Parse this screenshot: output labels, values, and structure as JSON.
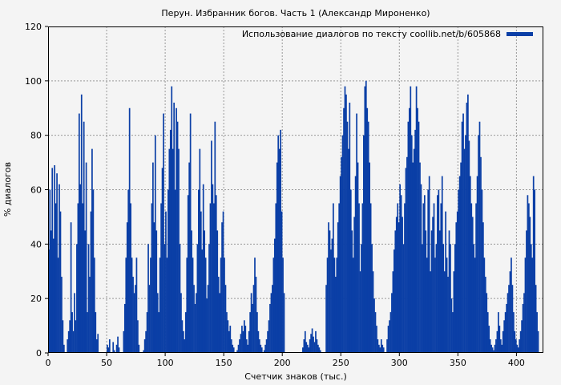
{
  "chart_data": {
    "type": "bar",
    "title": "Перун. Избранник богов. Часть 1 (Александр Мироненко)",
    "xlabel": "Счетчик знаков (тыс.)",
    "ylabel": "% диалогов",
    "xlim": [
      0,
      423
    ],
    "ylim": [
      0,
      120
    ],
    "xticks": [
      "0",
      "50",
      "100",
      "150",
      "200",
      "250",
      "300",
      "350",
      "400"
    ],
    "yticks": [
      "0",
      "20",
      "40",
      "60",
      "80",
      "100",
      "120"
    ],
    "grid": true,
    "legend_position": "top-right",
    "bar_width_thousands": 1,
    "series": [
      {
        "name": "Использование диалогов по тексту coollib.net/b/605868",
        "color": "#0b3fa6",
        "values": [
          38,
          60,
          45,
          68,
          42,
          69,
          55,
          66,
          35,
          62,
          52,
          28,
          12,
          3,
          0,
          0,
          5,
          8,
          12,
          48,
          15,
          8,
          22,
          12,
          40,
          55,
          88,
          62,
          95,
          55,
          85,
          45,
          70,
          15,
          40,
          28,
          52,
          75,
          60,
          35,
          15,
          5,
          7,
          0,
          0,
          0,
          0,
          0,
          0,
          0,
          3,
          2,
          5,
          0,
          0,
          4,
          1,
          0,
          3,
          6,
          2,
          0,
          0,
          0,
          8,
          18,
          35,
          48,
          60,
          90,
          55,
          35,
          28,
          22,
          25,
          35,
          12,
          3,
          0,
          0,
          0,
          1,
          5,
          8,
          15,
          40,
          25,
          35,
          55,
          70,
          48,
          80,
          45,
          22,
          15,
          35,
          55,
          68,
          88,
          40,
          52,
          35,
          60,
          75,
          82,
          98,
          75,
          92,
          60,
          90,
          85,
          75,
          40,
          22,
          12,
          8,
          5,
          15,
          35,
          58,
          70,
          88,
          45,
          35,
          25,
          18,
          22,
          40,
          60,
          75,
          52,
          38,
          62,
          45,
          35,
          20,
          25,
          40,
          55,
          78,
          62,
          55,
          85,
          58,
          45,
          28,
          22,
          35,
          48,
          52,
          35,
          25,
          15,
          12,
          8,
          10,
          5,
          3,
          2,
          0,
          0,
          1,
          3,
          5,
          7,
          10,
          8,
          12,
          10,
          5,
          3,
          8,
          15,
          22,
          18,
          25,
          35,
          28,
          15,
          8,
          5,
          3,
          2,
          0,
          1,
          3,
          5,
          8,
          12,
          18,
          22,
          25,
          35,
          42,
          55,
          70,
          80,
          75,
          82,
          52,
          35,
          22,
          0,
          0,
          0,
          0,
          0,
          0,
          0,
          0,
          0,
          0,
          0,
          0,
          0,
          0,
          0,
          2,
          5,
          8,
          4,
          3,
          2,
          5,
          7,
          9,
          6,
          4,
          8,
          5,
          3,
          2,
          1,
          0,
          0,
          0,
          0,
          25,
          35,
          48,
          45,
          38,
          42,
          55,
          35,
          28,
          35,
          48,
          55,
          65,
          72,
          80,
          90,
          98,
          95,
          85,
          75,
          92,
          60,
          45,
          35,
          50,
          65,
          88,
          70,
          55,
          30,
          40,
          55,
          80,
          98,
          100,
          90,
          85,
          70,
          55,
          40,
          30,
          20,
          15,
          10,
          5,
          3,
          2,
          5,
          3,
          2,
          0,
          0,
          5,
          10,
          12,
          15,
          22,
          30,
          38,
          45,
          50,
          55,
          48,
          62,
          58,
          50,
          40,
          55,
          68,
          72,
          85,
          90,
          98,
          80,
          70,
          75,
          82,
          98,
          90,
          85,
          70,
          62,
          40,
          55,
          58,
          45,
          35,
          60,
          65,
          30,
          45,
          50,
          55,
          35,
          40,
          58,
          60,
          45,
          55,
          65,
          40,
          30,
          52,
          35,
          28,
          45,
          40,
          20,
          15,
          30,
          40,
          48,
          52,
          60,
          65,
          70,
          85,
          88,
          75,
          80,
          92,
          95,
          78,
          65,
          55,
          50,
          40,
          35,
          55,
          65,
          80,
          85,
          72,
          60,
          48,
          35,
          28,
          22,
          15,
          10,
          5,
          3,
          2,
          1,
          3,
          5,
          8,
          15,
          10,
          5,
          3,
          8,
          12,
          15,
          18,
          22,
          25,
          30,
          35,
          25,
          15,
          8,
          5,
          3,
          2,
          5,
          8,
          12,
          18,
          22,
          35,
          45,
          58,
          55,
          50,
          40,
          35,
          65,
          60,
          25,
          15,
          8
        ]
      }
    ]
  }
}
